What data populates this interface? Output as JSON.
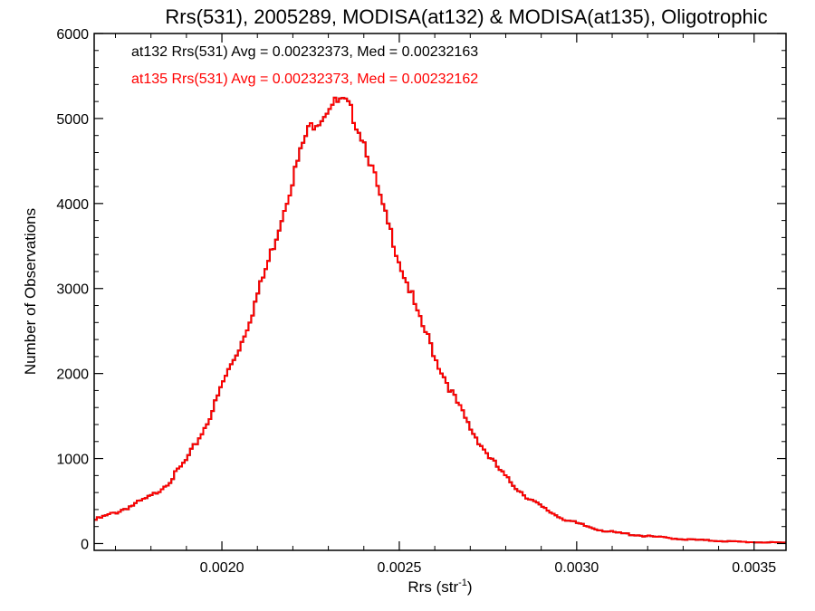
{
  "chart_data": {
    "type": "histogram",
    "title": "Rrs(531), 2005289, MODISA(at132) & MODISA(at135), Oligotrophic",
    "xlabel": "Rrs (str",
    "xlabel_exponent": "-1",
    "xlabel_suffix": ")",
    "ylabel": "Number of Observations",
    "xlim": [
      0.00164,
      0.00359
    ],
    "ylim": [
      -80,
      6000
    ],
    "xticks": [
      0.002,
      0.0025,
      0.003,
      0.0035
    ],
    "xtick_labels": [
      "0.0020",
      "0.0025",
      "0.0030",
      "0.0035"
    ],
    "yticks": [
      0,
      1000,
      2000,
      3000,
      4000,
      5000,
      6000
    ],
    "ytick_labels": [
      "0",
      "1000",
      "2000",
      "3000",
      "4000",
      "5000",
      "6000"
    ],
    "grid": false,
    "annotations": [
      {
        "text": "at132 Rrs(531) Avg = 0.00232373, Med = 0.00232163",
        "color": "#000000"
      },
      {
        "text": "at135 Rrs(531) Avg = 0.00232373, Med = 0.00232162",
        "color": "#ff0000"
      }
    ],
    "series": [
      {
        "id": "at132",
        "color": "#000000",
        "x": [
          0.00164,
          0.0017,
          0.00175,
          0.0018,
          0.00185,
          0.0019,
          0.00195,
          0.00198,
          0.002,
          0.00205,
          0.00208,
          0.0021,
          0.00213,
          0.00215,
          0.00218,
          0.0022,
          0.00223,
          0.00225,
          0.00228,
          0.0023,
          0.00232,
          0.00233,
          0.00235,
          0.00237,
          0.0024,
          0.00243,
          0.00245,
          0.00248,
          0.0025,
          0.00253,
          0.00255,
          0.00258,
          0.0026,
          0.00265,
          0.0027,
          0.00275,
          0.0028,
          0.00285,
          0.0029,
          0.00295,
          0.003,
          0.00305,
          0.0031,
          0.0032,
          0.0033,
          0.0034,
          0.0035,
          0.00359
        ],
        "y": [
          280,
          370,
          460,
          560,
          740,
          1000,
          1380,
          1670,
          1900,
          2350,
          2700,
          2970,
          3350,
          3620,
          4060,
          4350,
          4770,
          4930,
          5030,
          5160,
          5180,
          5190,
          5160,
          5000,
          4700,
          4260,
          3940,
          3560,
          3270,
          2940,
          2660,
          2400,
          2160,
          1730,
          1330,
          1020,
          760,
          570,
          420,
          310,
          230,
          175,
          130,
          85,
          50,
          30,
          15,
          10
        ]
      },
      {
        "id": "at135",
        "color": "#ff0000",
        "x": [
          0.00164,
          0.0017,
          0.00175,
          0.0018,
          0.00185,
          0.0019,
          0.00195,
          0.00198,
          0.002,
          0.00205,
          0.00208,
          0.0021,
          0.00213,
          0.00215,
          0.00218,
          0.0022,
          0.00223,
          0.00225,
          0.00228,
          0.0023,
          0.00232,
          0.00233,
          0.00235,
          0.00237,
          0.0024,
          0.00243,
          0.00245,
          0.00248,
          0.0025,
          0.00253,
          0.00255,
          0.00258,
          0.0026,
          0.00265,
          0.0027,
          0.00275,
          0.0028,
          0.00285,
          0.0029,
          0.00295,
          0.003,
          0.00305,
          0.0031,
          0.0032,
          0.0033,
          0.0034,
          0.0035,
          0.00359
        ],
        "y": [
          280,
          370,
          460,
          560,
          740,
          1000,
          1380,
          1670,
          1900,
          2350,
          2700,
          2970,
          3350,
          3620,
          4060,
          4350,
          4770,
          4930,
          5030,
          5160,
          5180,
          5190,
          5160,
          5000,
          4700,
          4260,
          3940,
          3560,
          3270,
          2940,
          2660,
          2400,
          2160,
          1730,
          1330,
          1020,
          760,
          570,
          420,
          310,
          230,
          175,
          130,
          85,
          50,
          30,
          15,
          10
        ]
      }
    ]
  }
}
